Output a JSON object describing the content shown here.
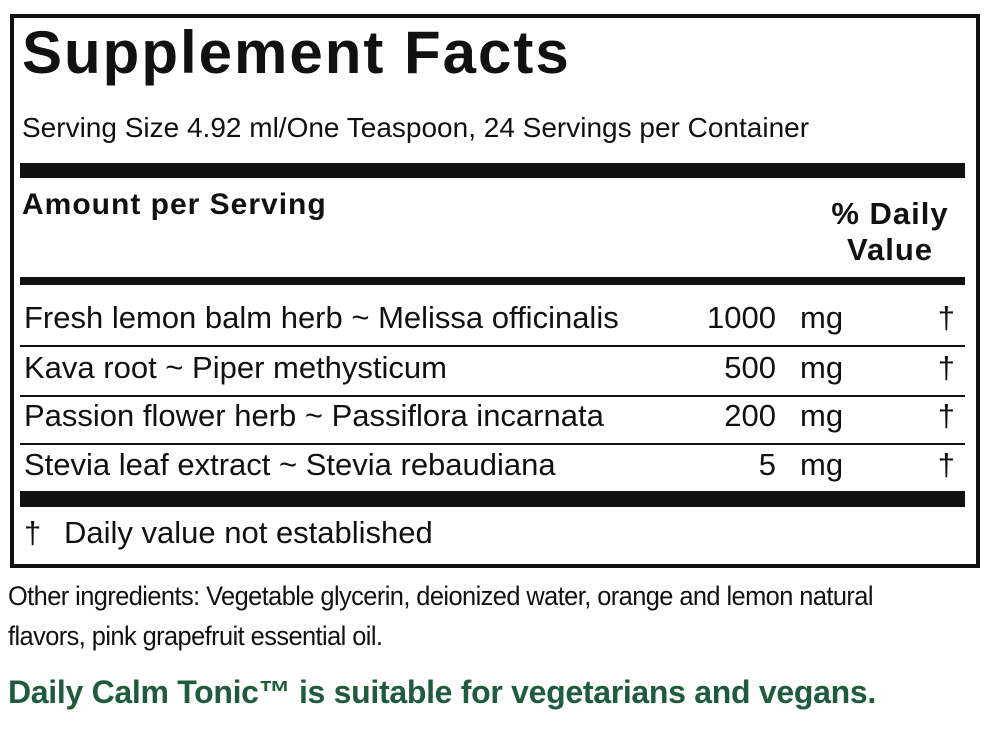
{
  "title": "Supplement Facts",
  "serving": "Serving Size 4.92 ml/One Teaspoon, 24 Servings per Container",
  "header": {
    "amount": "Amount per Serving",
    "daily_value": "% Daily Value"
  },
  "rows": [
    {
      "name": "Fresh lemon balm herb ~ Melissa officinalis",
      "amount": 1000,
      "unit": "mg",
      "dv": "†"
    },
    {
      "name": "Kava root ~ Piper methysticum",
      "amount": 500,
      "unit": "mg",
      "dv": "†"
    },
    {
      "name": "Passion flower herb ~ Passiflora incarnata",
      "amount": 200,
      "unit": "mg",
      "dv": "†"
    },
    {
      "name": "Stevia leaf extract ~ Stevia rebaudiana",
      "amount": 5,
      "unit": "mg",
      "dv": "†"
    }
  ],
  "footnote": {
    "symbol": "†",
    "text": "Daily value not established"
  },
  "other_ingredients": "Other ingredients: Vegetable glycerin, deionized water, orange and lemon natural flavors, pink grapefruit essential oil.",
  "note": "Daily Calm Tonic™ is suitable for vegetarians and vegans."
}
